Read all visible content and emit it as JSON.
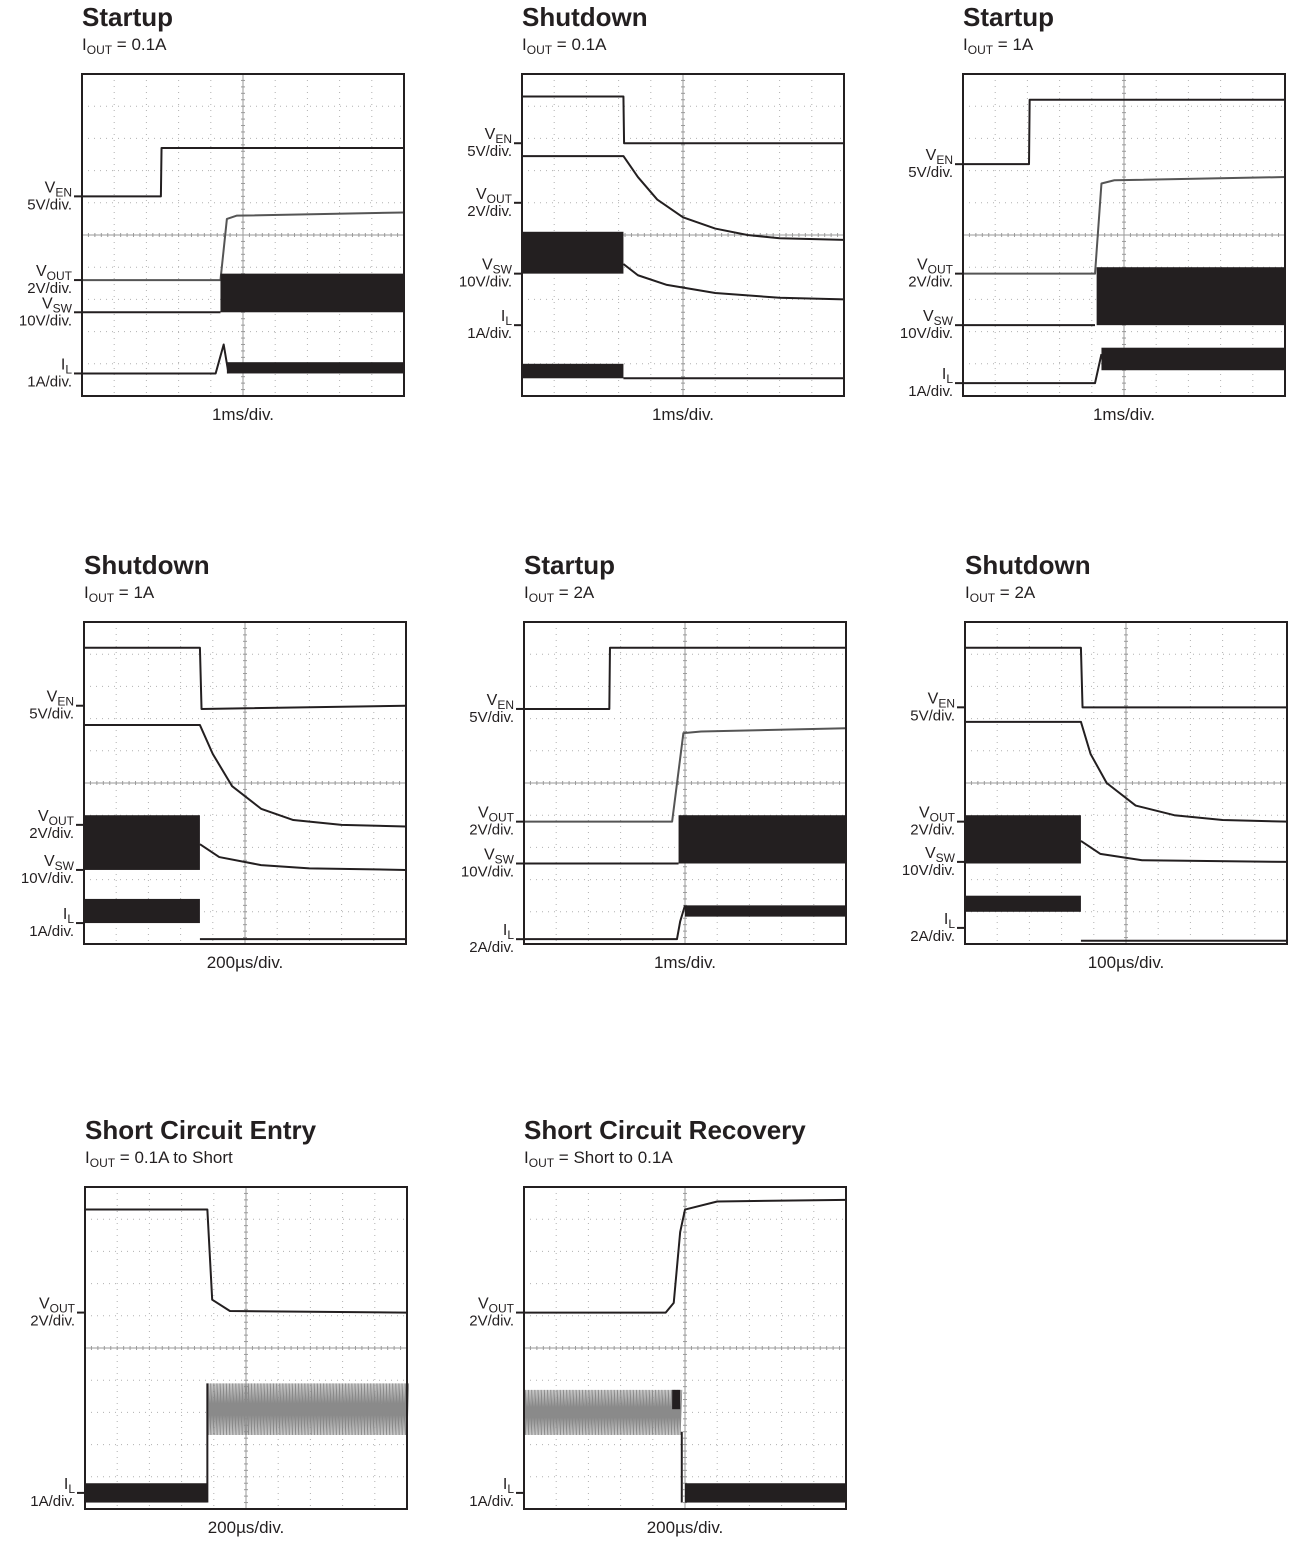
{
  "chart_data": [
    {
      "type": "line",
      "title": "Startup",
      "subtitle": {
        "prefix": "I",
        "sub": "OUT",
        "rest": " = 0.1A"
      },
      "timebase": "1ms/div.",
      "grid": true,
      "channels": [
        {
          "name": "V",
          "sub": "EN",
          "scale": "5V/div.",
          "marker": 3.8,
          "color": "#231f20",
          "trace": [
            [
              0,
              3.8
            ],
            [
              2.45,
              3.8
            ],
            [
              2.47,
              2.3
            ],
            [
              10,
              2.3
            ]
          ]
        },
        {
          "name": "V",
          "sub": "OUT",
          "scale": "2V/div.",
          "marker": 6.4,
          "color": "#555555",
          "trace": [
            [
              0,
              6.4
            ],
            [
              4.3,
              6.4
            ],
            [
              4.5,
              4.5
            ],
            [
              4.8,
              4.4
            ],
            [
              10,
              4.3
            ]
          ]
        },
        {
          "name": "V",
          "sub": "SW",
          "scale": "10V/div.",
          "marker": 7.4,
          "color": "#231f20",
          "trace": [
            [
              0,
              7.4
            ],
            [
              4.3,
              7.4
            ]
          ],
          "bands": [
            [
              4.3,
              10,
              6.2,
              7.4
            ]
          ]
        },
        {
          "name": "I",
          "sub": "L",
          "scale": "1A/div.",
          "marker": 9.3,
          "color": "#231f20",
          "trace": [
            [
              0,
              9.3
            ],
            [
              4.15,
              9.3
            ],
            [
              4.4,
              8.4
            ],
            [
              4.55,
              9.3
            ]
          ],
          "bands": [
            [
              4.5,
              10,
              8.95,
              9.3
            ]
          ]
        }
      ]
    },
    {
      "type": "line",
      "title": "Shutdown",
      "subtitle": {
        "prefix": "I",
        "sub": "OUT",
        "rest": " = 0.1A"
      },
      "timebase": "1ms/div.",
      "grid": true,
      "channels": [
        {
          "name": "V",
          "sub": "EN",
          "scale": "5V/div.",
          "marker": 2.15,
          "color": "#231f20",
          "trace": [
            [
              0,
              0.7
            ],
            [
              3.15,
              0.7
            ],
            [
              3.17,
              2.15
            ],
            [
              10,
              2.15
            ]
          ]
        },
        {
          "name": "V",
          "sub": "OUT",
          "scale": "2V/div.",
          "marker": 4.0,
          "color": "#231f20",
          "trace": [
            [
              0,
              2.55
            ],
            [
              3.15,
              2.55
            ],
            [
              3.6,
              3.2
            ],
            [
              4.2,
              3.9
            ],
            [
              5,
              4.45
            ],
            [
              6,
              4.8
            ],
            [
              7,
              5.0
            ],
            [
              8,
              5.1
            ],
            [
              10,
              5.15
            ]
          ]
        },
        {
          "name": "V",
          "sub": "SW",
          "scale": "10V/div.",
          "marker": 6.2,
          "color": "#231f20",
          "trace": [
            [
              3.15,
              5.9
            ],
            [
              3.6,
              6.25
            ],
            [
              4.5,
              6.55
            ],
            [
              6,
              6.8
            ],
            [
              8,
              6.95
            ],
            [
              10,
              7.0
            ]
          ],
          "bands": [
            [
              0,
              3.15,
              4.9,
              6.2
            ]
          ]
        },
        {
          "name": "I",
          "sub": "L",
          "scale": "1A/div.",
          "marker": 7.8,
          "color": "#231f20",
          "trace": [
            [
              3.15,
              9.45
            ],
            [
              10,
              9.45
            ]
          ],
          "bands": [
            [
              0,
              3.15,
              9.0,
              9.45
            ]
          ]
        }
      ]
    },
    {
      "type": "line",
      "title": "Startup",
      "subtitle": {
        "prefix": "I",
        "sub": "OUT",
        "rest": " = 1A"
      },
      "timebase": "1ms/div.",
      "grid": true,
      "channels": [
        {
          "name": "V",
          "sub": "EN",
          "scale": "5V/div.",
          "marker": 2.8,
          "color": "#231f20",
          "trace": [
            [
              0,
              2.8
            ],
            [
              2.05,
              2.8
            ],
            [
              2.07,
              0.8
            ],
            [
              10,
              0.8
            ]
          ]
        },
        {
          "name": "V",
          "sub": "OUT",
          "scale": "2V/div.",
          "marker": 6.2,
          "color": "#555555",
          "trace": [
            [
              0,
              6.2
            ],
            [
              4.1,
              6.2
            ],
            [
              4.3,
              3.4
            ],
            [
              4.7,
              3.3
            ],
            [
              10,
              3.2
            ]
          ]
        },
        {
          "name": "V",
          "sub": "SW",
          "scale": "10V/div.",
          "marker": 7.8,
          "color": "#231f20",
          "trace": [
            [
              0,
              7.8
            ],
            [
              4.1,
              7.8
            ]
          ],
          "bands": [
            [
              4.15,
              10,
              6.0,
              7.8
            ]
          ]
        },
        {
          "name": "I",
          "sub": "L",
          "scale": "1A/div.",
          "marker": 9.6,
          "color": "#231f20",
          "trace": [
            [
              0,
              9.6
            ],
            [
              4.1,
              9.6
            ],
            [
              4.3,
              8.7
            ]
          ],
          "bands": [
            [
              4.3,
              10,
              8.5,
              9.2
            ]
          ]
        }
      ]
    },
    {
      "type": "line",
      "title": "Shutdown",
      "subtitle": {
        "prefix": "I",
        "sub": "OUT",
        "rest": " = 1A"
      },
      "timebase": "200µs/div.",
      "grid": true,
      "channels": [
        {
          "name": "V",
          "sub": "EN",
          "scale": "5V/div.",
          "marker": 2.6,
          "color": "#231f20",
          "trace": [
            [
              0,
              0.8
            ],
            [
              3.6,
              0.8
            ],
            [
              3.65,
              2.7
            ],
            [
              10,
              2.6
            ]
          ]
        },
        {
          "name": "V",
          "sub": "OUT",
          "scale": "2V/div.",
          "marker": 6.3,
          "color": "#231f20",
          "trace": [
            [
              0,
              3.2
            ],
            [
              3.6,
              3.2
            ],
            [
              4.0,
              4.1
            ],
            [
              4.6,
              5.1
            ],
            [
              5.5,
              5.8
            ],
            [
              6.5,
              6.15
            ],
            [
              8,
              6.3
            ],
            [
              10,
              6.35
            ]
          ]
        },
        {
          "name": "V",
          "sub": "SW",
          "scale": "10V/div.",
          "marker": 7.7,
          "color": "#231f20",
          "trace": [
            [
              3.6,
              6.9
            ],
            [
              4.2,
              7.3
            ],
            [
              5.5,
              7.55
            ],
            [
              7,
              7.65
            ],
            [
              10,
              7.7
            ]
          ],
          "bands": [
            [
              0,
              3.6,
              6.0,
              7.7
            ]
          ]
        },
        {
          "name": "I",
          "sub": "L",
          "scale": "1A/div.",
          "marker": 9.35,
          "color": "#231f20",
          "trace": [
            [
              3.6,
              9.85
            ],
            [
              10,
              9.85
            ]
          ],
          "bands": [
            [
              0,
              3.6,
              8.6,
              9.35
            ]
          ]
        }
      ]
    },
    {
      "type": "line",
      "title": "Startup",
      "subtitle": {
        "prefix": "I",
        "sub": "OUT",
        "rest": " = 2A"
      },
      "timebase": "1ms/div.",
      "grid": true,
      "channels": [
        {
          "name": "V",
          "sub": "EN",
          "scale": "5V/div.",
          "marker": 2.7,
          "color": "#231f20",
          "trace": [
            [
              0,
              2.7
            ],
            [
              2.65,
              2.7
            ],
            [
              2.67,
              0.8
            ],
            [
              10,
              0.8
            ]
          ]
        },
        {
          "name": "V",
          "sub": "OUT",
          "scale": "2V/div.",
          "marker": 6.2,
          "color": "#555555",
          "trace": [
            [
              0,
              6.2
            ],
            [
              4.6,
              6.2
            ],
            [
              4.95,
              3.45
            ],
            [
              5.5,
              3.4
            ],
            [
              10,
              3.3
            ]
          ]
        },
        {
          "name": "V",
          "sub": "SW",
          "scale": "10V/div.",
          "marker": 7.5,
          "color": "#231f20",
          "trace": [
            [
              0,
              7.5
            ],
            [
              4.8,
              7.5
            ]
          ],
          "bands": [
            [
              4.8,
              10,
              6.0,
              7.5
            ]
          ]
        },
        {
          "name": "I",
          "sub": "L",
          "scale": "2A/div.",
          "marker": 9.85,
          "color": "#231f20",
          "trace": [
            [
              0,
              9.85
            ],
            [
              4.75,
              9.85
            ],
            [
              4.85,
              9.3
            ],
            [
              5.0,
              8.8
            ]
          ],
          "bands": [
            [
              5.0,
              10,
              8.8,
              9.15
            ]
          ]
        }
      ]
    },
    {
      "type": "line",
      "title": "Shutdown",
      "subtitle": {
        "prefix": "I",
        "sub": "OUT",
        "rest": " = 2A"
      },
      "timebase": "100µs/div.",
      "grid": true,
      "channels": [
        {
          "name": "V",
          "sub": "EN",
          "scale": "5V/div.",
          "marker": 2.65,
          "color": "#231f20",
          "trace": [
            [
              0,
              0.8
            ],
            [
              3.6,
              0.8
            ],
            [
              3.65,
              2.65
            ],
            [
              10,
              2.65
            ]
          ]
        },
        {
          "name": "V",
          "sub": "OUT",
          "scale": "2V/div.",
          "marker": 6.2,
          "color": "#231f20",
          "trace": [
            [
              0,
              3.1
            ],
            [
              3.6,
              3.1
            ],
            [
              3.9,
              4.1
            ],
            [
              4.4,
              5.0
            ],
            [
              5.3,
              5.7
            ],
            [
              6.5,
              6.0
            ],
            [
              8,
              6.15
            ],
            [
              10,
              6.2
            ]
          ]
        },
        {
          "name": "V",
          "sub": "SW",
          "scale": "10V/div.",
          "marker": 7.45,
          "color": "#231f20",
          "trace": [
            [
              3.6,
              6.8
            ],
            [
              4.2,
              7.2
            ],
            [
              5.5,
              7.4
            ],
            [
              10,
              7.45
            ]
          ],
          "bands": [
            [
              0,
              3.6,
              6.0,
              7.5
            ]
          ]
        },
        {
          "name": "I",
          "sub": "L",
          "scale": "2A/div.",
          "marker": 9.5,
          "color": "#231f20",
          "trace": [
            [
              3.6,
              9.9
            ],
            [
              10,
              9.9
            ]
          ],
          "bands": [
            [
              0,
              3.6,
              8.5,
              9.0
            ]
          ]
        }
      ]
    },
    {
      "type": "line",
      "title": "Short Circuit Entry",
      "subtitle": {
        "prefix": "I",
        "sub": "OUT",
        "rest": " = 0.1A to Short"
      },
      "timebase": "200µs/div.",
      "grid": true,
      "channels": [
        {
          "name": "V",
          "sub": "OUT",
          "scale": "2V/div.",
          "marker": 3.9,
          "color": "#231f20",
          "trace": [
            [
              0,
              0.7
            ],
            [
              3.8,
              0.7
            ],
            [
              3.95,
              3.5
            ],
            [
              4.5,
              3.85
            ],
            [
              10,
              3.9
            ]
          ]
        },
        {
          "name": "I",
          "sub": "L",
          "scale": "1A/div.",
          "marker": 9.5,
          "color": "#231f20",
          "trace": [
            [
              3.8,
              9.8
            ],
            [
              3.8,
              6.1
            ]
          ],
          "bands": [
            [
              0,
              3.8,
              9.2,
              9.8
            ]
          ],
          "ripple": [
            [
              3.8,
              10,
              6.1,
              7.7
            ]
          ]
        }
      ]
    },
    {
      "type": "line",
      "title": "Short Circuit Recovery",
      "subtitle": {
        "prefix": "I",
        "sub": "OUT",
        "rest": " = Short to 0.1A"
      },
      "timebase": "200µs/div.",
      "grid": true,
      "channels": [
        {
          "name": "V",
          "sub": "OUT",
          "scale": "2V/div.",
          "marker": 3.9,
          "color": "#231f20",
          "trace": [
            [
              0,
              3.9
            ],
            [
              4.4,
              3.9
            ],
            [
              4.65,
              3.6
            ],
            [
              4.85,
              1.4
            ],
            [
              5.0,
              0.7
            ],
            [
              6,
              0.45
            ],
            [
              10,
              0.4
            ]
          ]
        },
        {
          "name": "I",
          "sub": "L",
          "scale": "1A/div.",
          "marker": 9.5,
          "color": "#231f20",
          "trace": [
            [
              4.9,
              9.8
            ],
            [
              4.9,
              7.6
            ]
          ],
          "bands": [
            [
              5.0,
              10,
              9.2,
              9.8
            ],
            [
              4.6,
              4.85,
              6.3,
              6.9
            ]
          ],
          "ripple": [
            [
              0,
              4.85,
              6.3,
              7.7
            ]
          ]
        }
      ]
    }
  ]
}
